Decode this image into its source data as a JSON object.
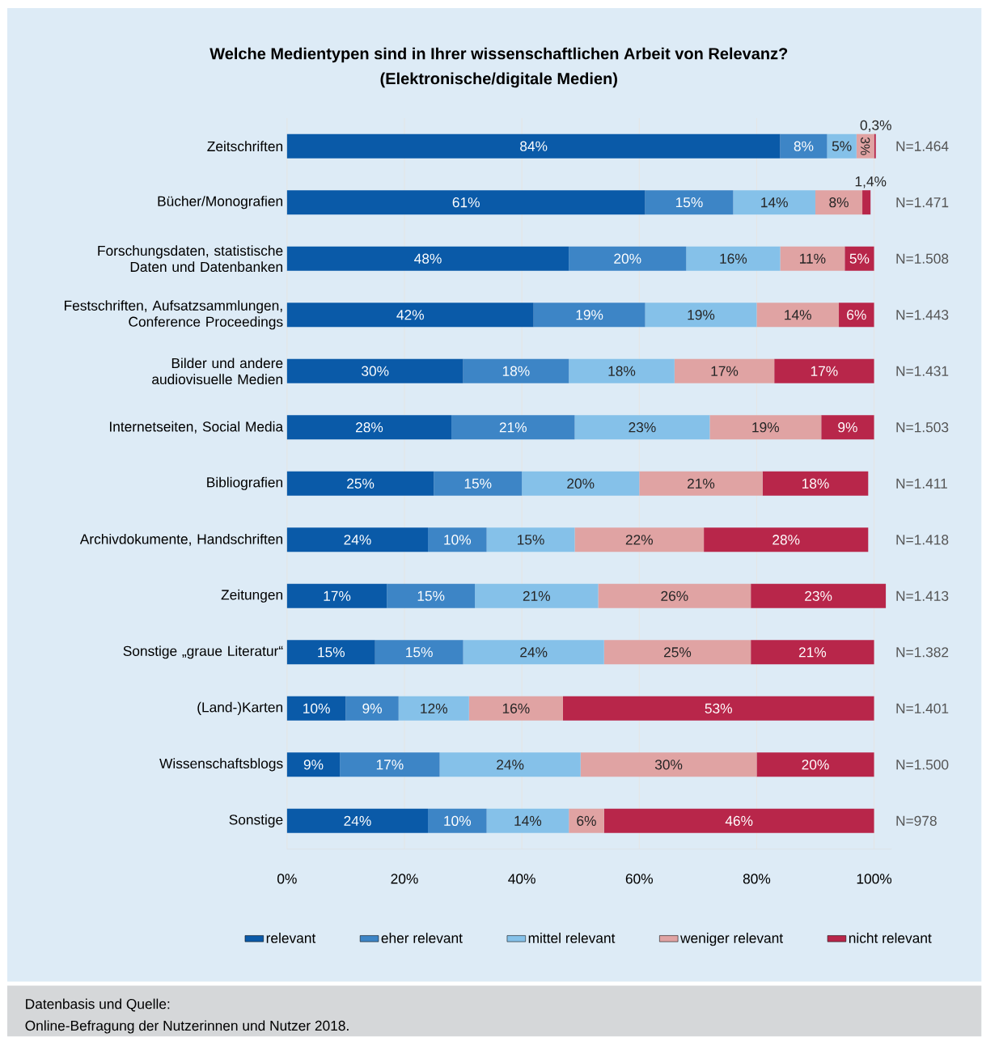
{
  "chart_data": {
    "type": "bar",
    "orientation": "horizontal",
    "stacked": true,
    "title": "Welche Medientypen sind in Ihrer wissenschaftlichen Arbeit von Relevanz?",
    "subtitle": "(Elektronische/digitale Medien)",
    "categories": [
      "Zeitschriften",
      "Bücher/Monografien",
      "Forschungsdaten, statistische Daten und Datenbanken",
      "Festschriften, Aufsatzsammlungen, Conference Proceedings",
      "Bilder und andere audiovisuelle Medien",
      "Internetseiten, Social Media",
      "Bibliografien",
      "Archivdokumente, Handschriften",
      "Zeitungen",
      "Sonstige „graue Literatur“",
      "(Land-)Karten",
      "Wissenschaftsblogs",
      "Sonstige"
    ],
    "series": [
      {
        "name": "relevant",
        "color": "#0a5aa8",
        "values": [
          84,
          61,
          48,
          42,
          30,
          28,
          25,
          24,
          17,
          15,
          10,
          9,
          24
        ],
        "value_labels": [
          "84%",
          "61%",
          "48%",
          "42%",
          "30%",
          "28%",
          "25%",
          "24%",
          "17%",
          "15%",
          "10%",
          "9%",
          "24%"
        ]
      },
      {
        "name": "eher relevant",
        "color": "#3d85c6",
        "values": [
          8,
          15,
          20,
          19,
          18,
          21,
          15,
          10,
          15,
          15,
          9,
          17,
          10
        ],
        "value_labels": [
          "8%",
          "15%",
          "20%",
          "19%",
          "18%",
          "21%",
          "15%",
          "10%",
          "15%",
          "15%",
          "9%",
          "17%",
          "10%"
        ]
      },
      {
        "name": "mittel relevant",
        "color": "#85c1e9",
        "values": [
          5,
          14,
          16,
          19,
          18,
          23,
          20,
          15,
          21,
          24,
          12,
          24,
          14
        ],
        "value_labels": [
          "5%",
          "14%",
          "16%",
          "19%",
          "18%",
          "23%",
          "20%",
          "15%",
          "21%",
          "24%",
          "12%",
          "24%",
          "14%"
        ]
      },
      {
        "name": "weniger relevant",
        "color": "#e0a3a3",
        "values": [
          3,
          8,
          11,
          14,
          17,
          19,
          21,
          22,
          26,
          25,
          16,
          30,
          6
        ],
        "value_labels": [
          "3%",
          "8%",
          "11%",
          "14%",
          "17%",
          "19%",
          "21%",
          "22%",
          "26%",
          "25%",
          "16%",
          "30%",
          "6%"
        ]
      },
      {
        "name": "nicht relevant",
        "color": "#b8264a",
        "values": [
          0.3,
          1.4,
          5,
          6,
          17,
          9,
          18,
          28,
          23,
          21,
          53,
          20,
          46
        ],
        "value_labels": [
          "0,3%",
          "1,4%",
          "5%",
          "6%",
          "17%",
          "9%",
          "18%",
          "28%",
          "23%",
          "21%",
          "53%",
          "20%",
          "46%"
        ]
      }
    ],
    "xlim": [
      0,
      103
    ],
    "xticks": [
      {
        "value": 0,
        "label": "0%"
      },
      {
        "value": 20,
        "label": "20%"
      },
      {
        "value": 40,
        "label": "40%"
      },
      {
        "value": 60,
        "label": "60%"
      },
      {
        "value": 80,
        "label": "80%"
      },
      {
        "value": 100,
        "label": "100%"
      }
    ],
    "grid": "x",
    "legend": "bottom",
    "annotations": [
      "N=1.464",
      "N=1.471",
      "N=1.508",
      "N=1.443",
      "N=1.431",
      "N=1.503",
      "N=1.411",
      "N=1.418",
      "N=1.413",
      "N=1.382",
      "N=1.401",
      "N=1.500",
      "N=978",
      "Datenbasis und Quelle:",
      "Online-Befragung der Nutzerinnen und Nutzer 2018."
    ]
  }
}
